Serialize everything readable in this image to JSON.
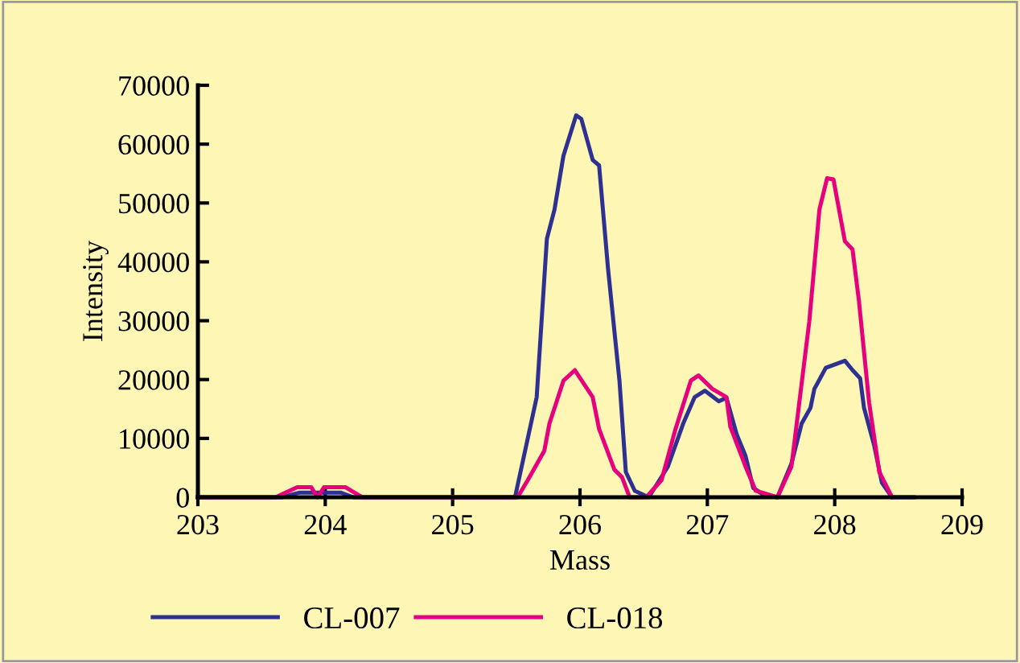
{
  "chart_data": {
    "type": "line",
    "xlabel": "Mass",
    "ylabel": "Intensity",
    "xlim": [
      203,
      209
    ],
    "xticks": [
      203,
      204,
      205,
      206,
      207,
      208,
      209
    ],
    "ylim": [
      0,
      70000
    ],
    "yticks": [
      0,
      10000,
      20000,
      30000,
      40000,
      50000,
      60000,
      70000
    ],
    "grid": false,
    "legend": "bottom",
    "marker": "none",
    "line_style": "solid",
    "series": [
      {
        "name": "CL-007",
        "color": "#2e3192",
        "x": [
          203,
          203.66,
          203.8,
          204.12,
          204.22,
          205.49,
          205.66,
          205.74,
          205.8,
          205.87,
          205.97,
          206.01,
          206.1,
          206.15,
          206.22,
          206.31,
          206.36,
          206.43,
          206.54,
          206.69,
          206.81,
          206.9,
          206.98,
          207.09,
          207.15,
          207.23,
          207.3,
          207.36,
          207.45,
          207.55,
          207.66,
          207.74,
          207.81,
          207.84,
          207.93,
          208.08,
          208.14,
          208.2,
          208.23,
          208.31,
          208.37,
          208.45,
          208.62
        ],
        "values": [
          0,
          0,
          800,
          800,
          0,
          0,
          17000,
          43900,
          48900,
          58000,
          64900,
          64300,
          57300,
          56400,
          38900,
          19800,
          4300,
          1100,
          0,
          5200,
          12500,
          17000,
          18100,
          16300,
          16900,
          10700,
          7000,
          1600,
          300,
          0,
          5700,
          12500,
          15200,
          18400,
          22000,
          23200,
          21600,
          20200,
          15200,
          8800,
          2500,
          0,
          0
        ]
      },
      {
        "name": "CL-018",
        "color": "#e6007e",
        "x": [
          203,
          203.61,
          203.78,
          203.89,
          203.94,
          203.99,
          204.16,
          204.29,
          205.51,
          205.59,
          205.72,
          205.76,
          205.87,
          205.96,
          206.1,
          206.15,
          206.27,
          206.33,
          206.39,
          206.52,
          206.64,
          206.75,
          206.87,
          206.93,
          207.04,
          207.15,
          207.18,
          207.3,
          207.38,
          207.55,
          207.66,
          207.8,
          207.88,
          207.94,
          207.99,
          208.08,
          208.14,
          208.19,
          208.27,
          208.35,
          208.45
        ],
        "values": [
          0,
          0,
          1700,
          1700,
          0,
          1700,
          1700,
          0,
          0,
          2900,
          7900,
          12500,
          19800,
          21600,
          17000,
          11600,
          4700,
          3400,
          0,
          0,
          2900,
          11600,
          19800,
          20700,
          18400,
          17000,
          12000,
          5200,
          1100,
          0,
          5200,
          29800,
          48900,
          54200,
          54000,
          43500,
          42100,
          33400,
          16100,
          4300,
          0
        ]
      }
    ]
  }
}
